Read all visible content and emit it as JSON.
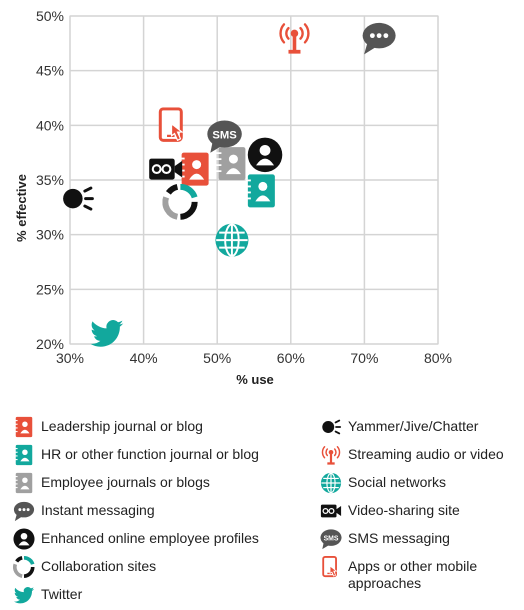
{
  "chart_data": {
    "type": "scatter",
    "title": "",
    "xlabel": "% use",
    "ylabel": "% effective",
    "xlim": [
      30,
      80
    ],
    "ylim": [
      20,
      50
    ],
    "x_ticks": [
      "30%",
      "40%",
      "50%",
      "60%",
      "70%",
      "80%"
    ],
    "y_ticks": [
      "20%",
      "25%",
      "30%",
      "35%",
      "40%",
      "45%",
      "50%"
    ],
    "grid": true,
    "legend_position": "bottom",
    "points": [
      {
        "name": "Leadership journal or blog",
        "icon": "leadership-blog-icon",
        "x": 47,
        "y": 36,
        "color": "#e8503a"
      },
      {
        "name": "HR or other function journal or blog",
        "icon": "hr-blog-icon",
        "x": 56,
        "y": 34,
        "color": "#12a89d"
      },
      {
        "name": "Employee journals or blogs",
        "icon": "employee-blog-icon",
        "x": 52,
        "y": 36.5,
        "color": "#a0a0a0"
      },
      {
        "name": "Instant messaging",
        "icon": "instant-messaging-icon",
        "x": 72,
        "y": 48,
        "color": "#555555"
      },
      {
        "name": "Enhanced online employee profiles",
        "icon": "employee-profile-icon",
        "x": 56.5,
        "y": 37.3,
        "color": "#111111"
      },
      {
        "name": "Collaboration sites",
        "icon": "collaboration-icon",
        "x": 45,
        "y": 33,
        "color": "#12a89d"
      },
      {
        "name": "Twitter",
        "icon": "twitter-icon",
        "x": 35,
        "y": 21,
        "color": "#12a89d"
      },
      {
        "name": "Yammer/Jive/Chatter",
        "icon": "yammer-icon",
        "x": 31,
        "y": 33.3,
        "color": "#111111"
      },
      {
        "name": "Streaming audio or video",
        "icon": "streaming-icon",
        "x": 60.5,
        "y": 48,
        "color": "#e8503a"
      },
      {
        "name": "Social networks",
        "icon": "social-network-icon",
        "x": 52,
        "y": 29.5,
        "color": "#12a89d"
      },
      {
        "name": "Video-sharing site",
        "icon": "video-sharing-icon",
        "x": 43,
        "y": 36,
        "color": "#111111"
      },
      {
        "name": "SMS messaging",
        "icon": "sms-icon",
        "x": 51,
        "y": 39,
        "color": "#555555"
      },
      {
        "name": "Apps or other mobile approaches",
        "icon": "mobile-apps-icon",
        "x": 44,
        "y": 40,
        "color": "#e8503a"
      }
    ]
  },
  "sms_text": "SMS"
}
